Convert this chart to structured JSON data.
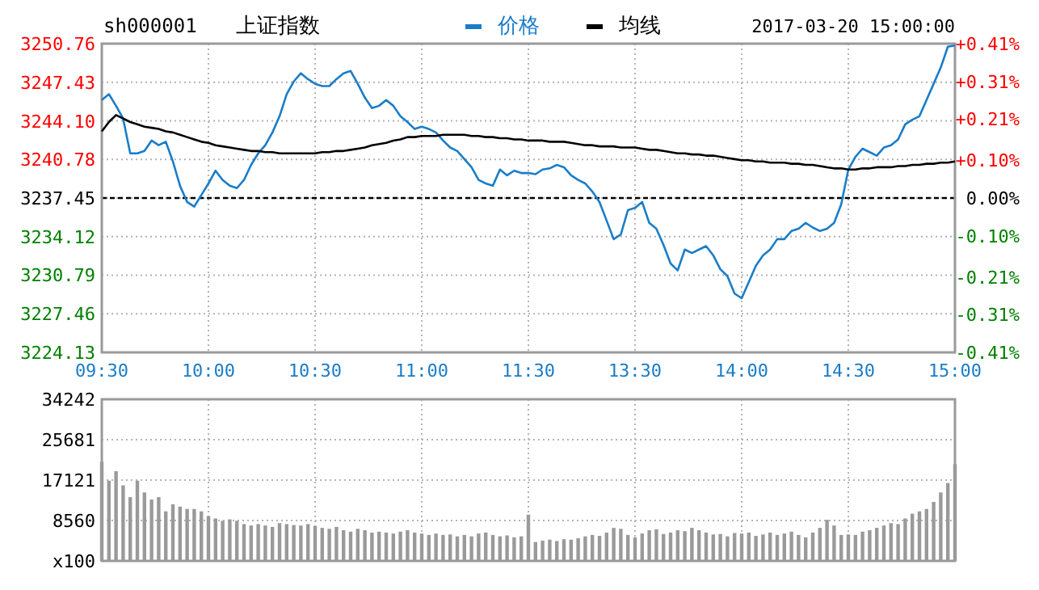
{
  "chart_data": [
    {
      "type": "line",
      "title": "上证指数",
      "subtitle": "sh000001",
      "annotations": [
        "2017-03-20 15:00:00"
      ],
      "categories": [
        "09:30",
        null,
        null,
        null,
        null,
        null,
        null,
        null,
        null,
        null,
        null,
        null,
        null,
        null,
        null,
        "10:00",
        null,
        null,
        null,
        null,
        null,
        null,
        null,
        null,
        null,
        null,
        null,
        null,
        null,
        null,
        "10:30",
        null,
        null,
        null,
        null,
        null,
        null,
        null,
        null,
        null,
        null,
        null,
        null,
        null,
        null,
        "11:00",
        null,
        null,
        null,
        null,
        null,
        null,
        null,
        null,
        null,
        null,
        null,
        null,
        null,
        null,
        "11:30",
        null,
        null,
        null,
        null,
        null,
        null,
        null,
        null,
        null,
        null,
        null,
        null,
        null,
        null,
        "13:30",
        null,
        null,
        null,
        null,
        null,
        null,
        null,
        null,
        null,
        null,
        null,
        null,
        null,
        null,
        "14:00",
        null,
        null,
        null,
        null,
        null,
        null,
        null,
        null,
        null,
        null,
        null,
        null,
        null,
        null,
        "14:30",
        null,
        null,
        null,
        null,
        null,
        null,
        null,
        null,
        null,
        null,
        null,
        null,
        null,
        null,
        "15:00"
      ],
      "series": [
        {
          "name": "价格",
          "color": "#1a7dc8",
          "values": [
            3245.9,
            3246.4,
            3245.4,
            3244.3,
            3241.3,
            3241.3,
            3241.5,
            3242.4,
            3242.0,
            3242.3,
            3240.6,
            3238.5,
            3237.1,
            3236.7,
            3237.7,
            3238.7,
            3239.8,
            3239.0,
            3238.5,
            3238.3,
            3239.0,
            3240.3,
            3241.3,
            3242.0,
            3243.1,
            3244.5,
            3246.4,
            3247.5,
            3248.2,
            3247.7,
            3247.3,
            3247.1,
            3247.1,
            3247.7,
            3248.2,
            3248.4,
            3247.3,
            3246.1,
            3245.2,
            3245.4,
            3245.9,
            3245.4,
            3244.5,
            3244.0,
            3243.4,
            3243.6,
            3243.4,
            3243.1,
            3242.4,
            3241.8,
            3241.5,
            3240.8,
            3240.1,
            3239.0,
            3238.7,
            3238.5,
            3239.9,
            3239.4,
            3239.8,
            3239.6,
            3239.6,
            3239.5,
            3239.9,
            3240.0,
            3240.3,
            3240.1,
            3239.4,
            3239.0,
            3238.7,
            3238.0,
            3237.1,
            3235.5,
            3233.9,
            3234.3,
            3236.4,
            3236.6,
            3237.1,
            3235.3,
            3234.8,
            3233.4,
            3231.8,
            3231.2,
            3233.0,
            3232.7,
            3233.0,
            3233.3,
            3232.5,
            3231.3,
            3230.7,
            3229.2,
            3228.8,
            3230.2,
            3231.6,
            3232.5,
            3233.0,
            3233.9,
            3233.9,
            3234.6,
            3234.8,
            3235.3,
            3234.9,
            3234.6,
            3234.8,
            3235.3,
            3236.9,
            3239.9,
            3241.0,
            3241.7,
            3241.4,
            3241.1,
            3241.8,
            3242.0,
            3242.5,
            3243.8,
            3244.2,
            3244.5,
            3245.9,
            3247.3,
            3248.7,
            3250.5,
            3250.6
          ]
        },
        {
          "name": "均线",
          "color": "#000000",
          "values": [
            3243.2,
            3244.0,
            3244.6,
            3244.3,
            3244.0,
            3243.8,
            3243.6,
            3243.5,
            3243.4,
            3243.2,
            3243.1,
            3242.9,
            3242.7,
            3242.5,
            3242.3,
            3242.2,
            3242.0,
            3241.9,
            3241.8,
            3241.7,
            3241.6,
            3241.5,
            3241.5,
            3241.4,
            3241.4,
            3241.3,
            3241.3,
            3241.3,
            3241.3,
            3241.3,
            3241.3,
            3241.4,
            3241.4,
            3241.5,
            3241.5,
            3241.6,
            3241.7,
            3241.8,
            3242.0,
            3242.1,
            3242.2,
            3242.4,
            3242.5,
            3242.7,
            3242.7,
            3242.8,
            3242.8,
            3242.8,
            3242.9,
            3242.9,
            3242.9,
            3242.9,
            3242.8,
            3242.8,
            3242.7,
            3242.7,
            3242.6,
            3242.6,
            3242.5,
            3242.5,
            3242.4,
            3242.4,
            3242.4,
            3242.3,
            3242.3,
            3242.3,
            3242.2,
            3242.1,
            3242.0,
            3242.0,
            3241.9,
            3241.9,
            3241.9,
            3241.8,
            3241.8,
            3241.8,
            3241.7,
            3241.6,
            3241.6,
            3241.5,
            3241.4,
            3241.3,
            3241.3,
            3241.2,
            3241.2,
            3241.1,
            3241.1,
            3241.0,
            3240.9,
            3240.8,
            3240.7,
            3240.7,
            3240.6,
            3240.6,
            3240.5,
            3240.5,
            3240.5,
            3240.4,
            3240.4,
            3240.3,
            3240.3,
            3240.2,
            3240.1,
            3240.0,
            3240.0,
            3239.9,
            3239.9,
            3240.0,
            3240.0,
            3240.1,
            3240.1,
            3240.1,
            3240.2,
            3240.2,
            3240.3,
            3240.3,
            3240.4,
            3240.4,
            3240.5,
            3240.5,
            3240.6
          ]
        }
      ],
      "ylim": [
        3224.13,
        3250.76
      ],
      "yticks": [
        3224.13,
        3227.46,
        3230.79,
        3234.12,
        3237.45,
        3240.78,
        {
          "value": 3244.1,
          "label": "3244.10"
        },
        3247.43,
        3250.76
      ],
      "y2lim": [
        -0.41,
        0.41
      ],
      "y2ticks": [
        {
          "value": -0.41,
          "label": "-0.41%"
        },
        {
          "value": -0.31,
          "label": "-0.31%"
        },
        {
          "value": -0.21,
          "label": "-0.21%"
        },
        {
          "value": -0.1,
          "label": "-0.10%"
        },
        {
          "value": 0,
          "label": "0.00%"
        },
        {
          "value": 0.1,
          "label": "+0.10%"
        },
        {
          "value": 0.21,
          "label": "+0.21%"
        },
        {
          "value": 0.31,
          "label": "+0.31%"
        },
        {
          "value": 0.41,
          "label": "+0.41%"
        }
      ],
      "ref_lines": [
        {
          "axis": "y",
          "value": 3237.45,
          "color": "#000000",
          "line_style": "dashed"
        }
      ],
      "grid": true,
      "legend": "top"
    },
    {
      "type": "bar",
      "color": "#9a9a9a",
      "categories": [
        null,
        null,
        null,
        null,
        null,
        null,
        null,
        null,
        null,
        null,
        null,
        null,
        null,
        null,
        null,
        null,
        null,
        null,
        null,
        null,
        null,
        null,
        null,
        null,
        null,
        null,
        null,
        null,
        null,
        null,
        null,
        null,
        null,
        null,
        null,
        null,
        null,
        null,
        null,
        null,
        null,
        null,
        null,
        null,
        null,
        null,
        null,
        null,
        null,
        null,
        null,
        null,
        null,
        null,
        null,
        null,
        null,
        null,
        null,
        null,
        null,
        null,
        null,
        null,
        null,
        null,
        null,
        null,
        null,
        null,
        null,
        null,
        null,
        null,
        null,
        null,
        null,
        null,
        null,
        null,
        null,
        null,
        null,
        null,
        null,
        null,
        null,
        null,
        null,
        null,
        null,
        null,
        null,
        null,
        null,
        null,
        null,
        null,
        null,
        null,
        null,
        null,
        null,
        null,
        null,
        null,
        null,
        null,
        null,
        null,
        null,
        null,
        null,
        null,
        null,
        null,
        null,
        null,
        null,
        null,
        null
      ],
      "values": [
        21000,
        17000,
        19000,
        16000,
        13500,
        17000,
        14500,
        13000,
        13500,
        10500,
        12000,
        11500,
        11000,
        11000,
        10500,
        9500,
        9000,
        8500,
        8800,
        8500,
        7800,
        7500,
        7800,
        7500,
        7200,
        8000,
        7800,
        7600,
        7500,
        7800,
        7400,
        7000,
        6800,
        7200,
        6500,
        6200,
        6800,
        6500,
        6000,
        6200,
        6000,
        5800,
        6200,
        6500,
        6000,
        5800,
        5500,
        5800,
        5500,
        5600,
        5200,
        5500,
        5200,
        5800,
        6000,
        5500,
        5200,
        5400,
        5000,
        5200,
        9800,
        4000,
        4300,
        4500,
        4200,
        4600,
        4500,
        4800,
        5200,
        5500,
        5300,
        6000,
        7000,
        6800,
        5500,
        5000,
        5800,
        6500,
        6700,
        5700,
        6000,
        6500,
        6300,
        7000,
        6500,
        6000,
        5600,
        5700,
        5200,
        5900,
        5800,
        6000,
        5300,
        5600,
        6000,
        5500,
        5800,
        6200,
        5500,
        5000,
        6000,
        7000,
        8700,
        7500,
        5500,
        5600,
        5500,
        6200,
        6500,
        7000,
        7500,
        8000,
        7800,
        9000,
        10000,
        10500,
        11000,
        12500,
        14500,
        16500,
        20500
      ],
      "ylim": [
        0,
        34242
      ],
      "yticks": [
        {
          "value": 0,
          "label": "x100"
        },
        8560,
        17121,
        25681,
        34242
      ],
      "grid": true,
      "tick_labels": "y"
    }
  ]
}
